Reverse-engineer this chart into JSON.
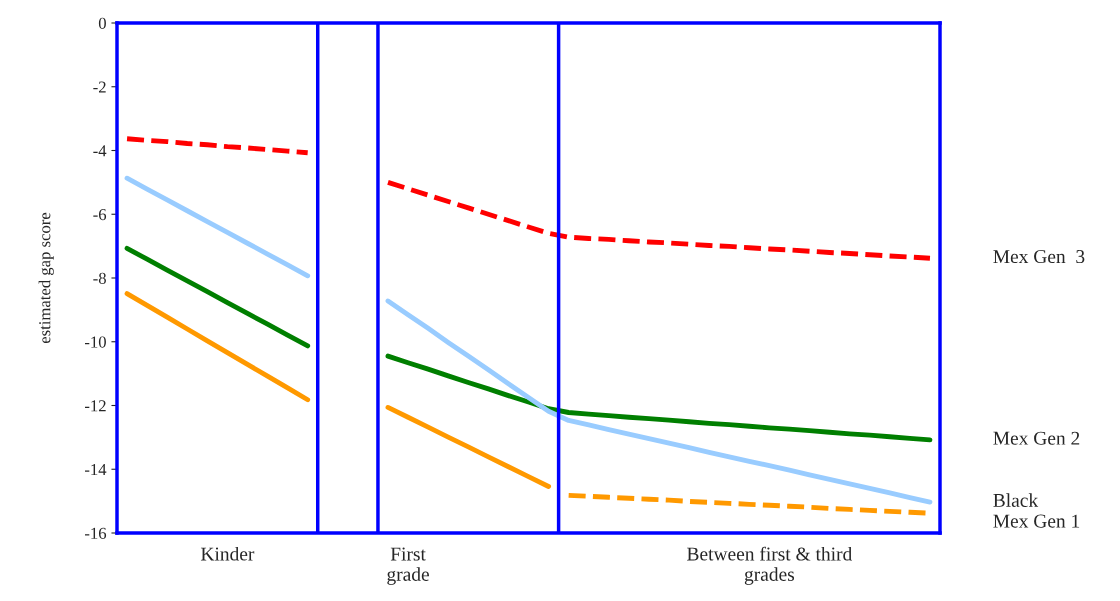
{
  "chart_data": [
    {
      "type": "line",
      "ylabel": "estimated gap score",
      "categories": [
        null,
        null,
        null,
        null,
        null,
        "Kinder",
        null,
        null,
        null,
        null,
        null,
        null,
        null,
        null,
        "First\ngrade",
        null,
        null,
        null,
        null,
        null,
        null,
        null,
        null,
        null,
        null,
        null,
        null,
        null,
        null,
        null,
        null,
        null,
        "Between first & third\ngrades",
        null,
        null,
        null,
        null,
        null,
        null,
        null,
        null
      ],
      "ylim": [
        -16,
        0
      ],
      "yticks": [
        {
          "value": -16,
          "label": "-16"
        },
        {
          "value": -14,
          "label": "-14"
        },
        {
          "value": -12,
          "label": "-12"
        },
        {
          "value": -10,
          "label": "-10"
        },
        {
          "value": -8,
          "label": "-8"
        },
        {
          "value": -6,
          "label": "-6"
        },
        {
          "value": -4,
          "label": "-4"
        },
        {
          "value": -2,
          "label": "-2"
        },
        0
      ],
      "grid": false,
      "legend": false,
      "marker": "none",
      "series": [
        {
          "name": "Mex Gen  3",
          "color": "#ff0000",
          "line_style": "dashed",
          "values": [
            -3.63,
            -3.68,
            -3.72,
            -3.78,
            -3.82,
            -3.88,
            -3.92,
            -3.97,
            -4.02,
            -4.07,
            null,
            null,
            null,
            -5.0,
            -5.2,
            -5.4,
            -5.6,
            -5.8,
            -6.0,
            -6.2,
            -6.4,
            -6.6,
            -6.72,
            -6.76,
            -6.79,
            -6.83,
            -6.87,
            -6.9,
            -6.94,
            -6.98,
            -7.01,
            -7.05,
            -7.09,
            -7.12,
            -7.16,
            -7.2,
            -7.23,
            -7.27,
            -7.31,
            -7.34,
            -7.38
          ]
        },
        {
          "name": "Mex Gen 2",
          "color": "#007f00",
          "line_style": "solid",
          "values": [
            -7.07,
            -7.41,
            -7.75,
            -8.09,
            -8.43,
            -8.77,
            -9.11,
            -9.45,
            -9.79,
            -10.13,
            null,
            null,
            null,
            -10.45,
            -10.66,
            -10.86,
            -11.07,
            -11.28,
            -11.48,
            -11.69,
            -11.89,
            -12.1,
            -12.22,
            -12.27,
            -12.32,
            -12.37,
            -12.41,
            -12.46,
            -12.51,
            -12.56,
            -12.6,
            -12.65,
            -12.7,
            -12.74,
            -12.79,
            -12.84,
            -12.89,
            -12.93,
            -12.98,
            -13.03,
            -13.08
          ]
        },
        {
          "name": "Black",
          "color": "#99ccff",
          "line_style": "solid",
          "values": [
            -4.87,
            -5.21,
            -5.55,
            -5.89,
            -6.23,
            -6.57,
            -6.91,
            -7.25,
            -7.59,
            -7.93,
            null,
            null,
            null,
            -8.72,
            -9.15,
            -9.58,
            -10.02,
            -10.45,
            -10.88,
            -11.32,
            -11.75,
            -12.18,
            -12.47,
            -12.61,
            -12.76,
            -12.9,
            -13.04,
            -13.18,
            -13.32,
            -13.47,
            -13.61,
            -13.75,
            -13.89,
            -14.03,
            -14.18,
            -14.32,
            -14.46,
            -14.6,
            -14.74,
            -14.89,
            -15.03
          ]
        },
        {
          "color": "#ff9900",
          "line_style": "solid",
          "values": [
            -8.49,
            -8.86,
            -9.23,
            -9.6,
            -9.97,
            -10.34,
            -10.71,
            -11.08,
            -11.45,
            -11.82,
            null,
            null,
            null,
            -12.06,
            -12.37,
            -12.68,
            -12.99,
            -13.3,
            -13.61,
            -13.92,
            -14.23,
            -14.54,
            null,
            null,
            null,
            null,
            null,
            null,
            null,
            null,
            null,
            null,
            null,
            null,
            null,
            null,
            null,
            null,
            null,
            null,
            null
          ]
        },
        {
          "name": "Mex Gen 1",
          "color": "#ff9900",
          "line_style": "dashed",
          "values": [
            null,
            null,
            null,
            null,
            null,
            null,
            null,
            null,
            null,
            null,
            null,
            null,
            null,
            null,
            null,
            null,
            null,
            null,
            null,
            null,
            null,
            null,
            -14.82,
            -14.85,
            -14.88,
            -14.91,
            -14.94,
            -14.97,
            -15.01,
            -15.04,
            -15.07,
            -15.1,
            -15.13,
            -15.16,
            -15.19,
            -15.23,
            -15.26,
            -15.29,
            -15.32,
            -15.35,
            -15.38
          ]
        }
      ]
    }
  ]
}
